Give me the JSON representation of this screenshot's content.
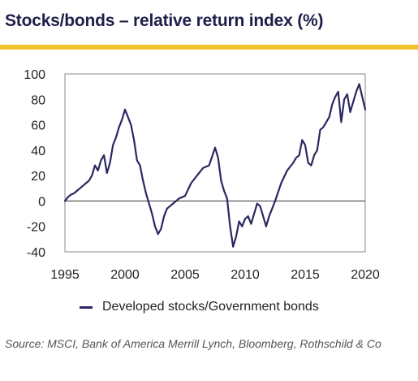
{
  "header": {
    "title": "Stocks/bonds – relative return index (%)"
  },
  "source": {
    "text": "Source: MSCI, Bank of America Merrill Lynch, Bloomberg, Rothschild & Co"
  },
  "colors": {
    "line": "#2b2762",
    "accent_rule": "#f2c22c",
    "title": "#1f1f4a"
  },
  "chart_data": {
    "type": "line",
    "title": "Stocks/bonds – relative return index (%)",
    "xlabel": "",
    "ylabel": "",
    "xlim": [
      1995,
      2020
    ],
    "ylim": [
      -40,
      100
    ],
    "xticks": [
      1995,
      2000,
      2005,
      2010,
      2015,
      2020
    ],
    "yticks": [
      -40,
      -20,
      0,
      20,
      40,
      60,
      80,
      100
    ],
    "zero_line": true,
    "grid": false,
    "legend_position": "bottom",
    "series": [
      {
        "name": "Developed stocks/Government bonds",
        "color": "#2b2762",
        "x": [
          1995.0,
          1995.25,
          1995.5,
          1995.75,
          1996.0,
          1996.25,
          1996.5,
          1996.75,
          1997.0,
          1997.25,
          1997.5,
          1997.75,
          1998.0,
          1998.25,
          1998.5,
          1998.75,
          1999.0,
          1999.25,
          1999.5,
          1999.75,
          2000.0,
          2000.25,
          2000.5,
          2000.75,
          2001.0,
          2001.25,
          2001.5,
          2001.75,
          2002.0,
          2002.25,
          2002.5,
          2002.75,
          2003.0,
          2003.25,
          2003.5,
          2003.75,
          2004.0,
          2004.5,
          2005.0,
          2005.5,
          2006.0,
          2006.5,
          2007.0,
          2007.5,
          2007.75,
          2008.0,
          2008.25,
          2008.5,
          2008.75,
          2009.0,
          2009.25,
          2009.5,
          2009.75,
          2010.0,
          2010.25,
          2010.5,
          2010.75,
          2011.0,
          2011.25,
          2011.5,
          2011.75,
          2012.0,
          2012.5,
          2013.0,
          2013.5,
          2014.0,
          2014.25,
          2014.5,
          2014.75,
          2015.0,
          2015.25,
          2015.5,
          2015.75,
          2016.0,
          2016.25,
          2016.5,
          2016.75,
          2017.0,
          2017.25,
          2017.5,
          2017.75,
          2018.0,
          2018.25,
          2018.5,
          2018.75,
          2019.0,
          2019.25,
          2019.5,
          2019.75,
          2020.0
        ],
        "values": [
          0,
          3,
          5,
          6,
          8,
          10,
          12,
          14,
          16,
          20,
          28,
          24,
          32,
          36,
          22,
          30,
          44,
          50,
          58,
          64,
          72,
          66,
          60,
          48,
          32,
          28,
          16,
          6,
          -2,
          -10,
          -20,
          -26,
          -22,
          -12,
          -6,
          -4,
          -2,
          2,
          4,
          14,
          20,
          26,
          28,
          42,
          34,
          16,
          8,
          2,
          -20,
          -36,
          -28,
          -16,
          -20,
          -14,
          -12,
          -18,
          -10,
          -2,
          -4,
          -12,
          -20,
          -12,
          0,
          14,
          24,
          30,
          34,
          36,
          48,
          44,
          30,
          28,
          36,
          40,
          56,
          58,
          62,
          66,
          76,
          82,
          86,
          62,
          80,
          84,
          70,
          78,
          86,
          92,
          82,
          72
        ]
      }
    ]
  }
}
